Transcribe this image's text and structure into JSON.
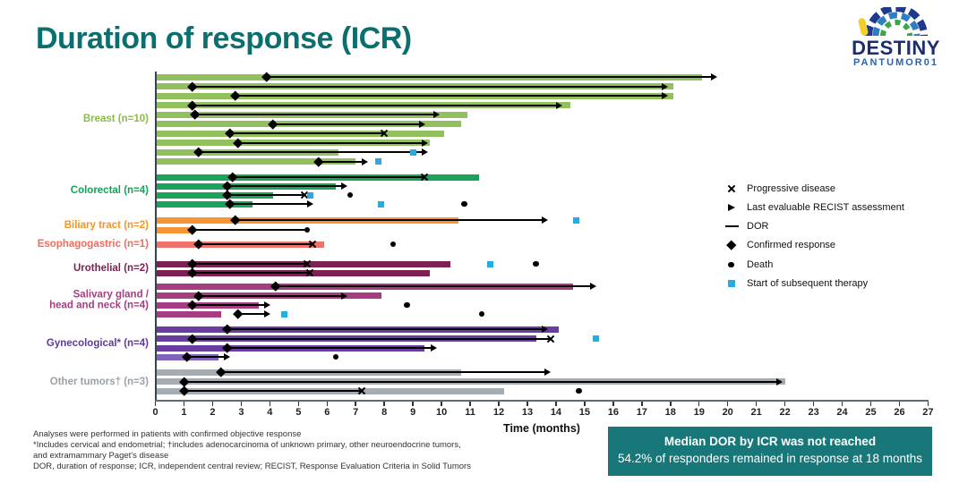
{
  "title": "Duration of response (ICR)",
  "logo": {
    "name": "DESTINY",
    "sub": "PANTUMOR01"
  },
  "colors": {
    "title": "#0c6f6f",
    "banner_bg": "#187779",
    "subsequent_therapy": "#29abe2",
    "logo_navy": "#1d2e6e",
    "logo_blue": "#2e62ab",
    "axis": "#37444c"
  },
  "banner": {
    "line1": "Median DOR by ICR was not reached",
    "line2": "54.2% of responders remained in response at 18 months"
  },
  "footnotes": [
    "Analyses were performed in patients with confirmed objective response",
    "*Includes cervical and endometrial; †includes adenocarcinoma of unknown primary, other neuroendocrine tumors,",
    "and extramammary Paget's disease",
    "DOR, duration of response; ICR, independent central review; RECIST, Response Evaluation Criteria in Solid Tumors"
  ],
  "legend": [
    {
      "symbol": "x",
      "label": "Progressive disease"
    },
    {
      "symbol": "arrow",
      "label": "Last evaluable RECIST assessment"
    },
    {
      "symbol": "line",
      "label": "DOR"
    },
    {
      "symbol": "diamond",
      "label": "Confirmed response"
    },
    {
      "symbol": "dot",
      "label": "Death"
    },
    {
      "symbol": "square",
      "label": "Start of subsequent therapy",
      "color": "#29abe2"
    }
  ],
  "chart_data": {
    "type": "bar",
    "subtype": "swimmer-plot",
    "xlabel": "Time (months)",
    "xlim": [
      0,
      27
    ],
    "xticks": [
      0,
      1,
      2,
      3,
      4,
      5,
      6,
      7,
      8,
      9,
      10,
      11,
      12,
      13,
      14,
      15,
      16,
      17,
      18,
      19,
      20,
      21,
      22,
      23,
      24,
      25,
      26,
      27
    ],
    "legend_position": "right",
    "grid": false,
    "sections": [
      {
        "label_lines": [
          "Breast (n=10)"
        ],
        "label_color": "#8abc4a",
        "color": "#93c05f",
        "rows": [
          {
            "bar": 19.1,
            "response": 3.9,
            "line_end": 19.5,
            "end_marker": "arrow",
            "death": null,
            "subsequent_therapy": null
          },
          {
            "bar": 18.1,
            "response": 1.3,
            "line_end": 17.8,
            "end_marker": "arrow",
            "death": null,
            "subsequent_therapy": null
          },
          {
            "bar": 18.1,
            "response": 2.8,
            "line_end": 17.8,
            "end_marker": "arrow",
            "death": null,
            "subsequent_therapy": null
          },
          {
            "bar": 14.5,
            "response": 1.3,
            "line_end": 14.1,
            "end_marker": "arrow",
            "death": null,
            "subsequent_therapy": null
          },
          {
            "bar": 10.9,
            "response": 1.4,
            "line_end": 9.8,
            "end_marker": "arrow",
            "death": null,
            "subsequent_therapy": null
          },
          {
            "bar": 10.7,
            "response": 4.1,
            "line_end": 9.3,
            "end_marker": "arrow",
            "death": null,
            "subsequent_therapy": null
          },
          {
            "bar": 10.1,
            "response": 2.6,
            "line_end": 8.0,
            "end_marker": "x",
            "death": null,
            "subsequent_therapy": null
          },
          {
            "bar": 9.6,
            "response": 2.9,
            "line_end": 9.4,
            "end_marker": "arrow",
            "death": null,
            "subsequent_therapy": null
          },
          {
            "bar": 6.4,
            "response": 1.5,
            "line_end": 9.4,
            "end_marker": "arrow",
            "death": null,
            "subsequent_therapy": 9.0
          },
          {
            "bar": 7.0,
            "response": 5.7,
            "line_end": 7.3,
            "end_marker": "arrow",
            "death": null,
            "subsequent_therapy": 7.8
          }
        ]
      },
      {
        "label_lines": [
          "Colorectal (n=4)"
        ],
        "label_color": "#17a258",
        "color": "#1ca35b",
        "rows": [
          {
            "bar": 11.3,
            "response": 2.7,
            "line_end": 9.4,
            "end_marker": "x",
            "death": null,
            "subsequent_therapy": null
          },
          {
            "bar": 6.3,
            "response": 2.5,
            "line_end": 6.6,
            "end_marker": "arrow",
            "death": null,
            "subsequent_therapy": null
          },
          {
            "bar": 4.1,
            "response": 2.5,
            "line_end": 5.2,
            "end_marker": "x",
            "death": 6.8,
            "subsequent_therapy": 5.4
          },
          {
            "bar": 3.4,
            "response": 2.6,
            "line_end": 5.4,
            "end_marker": "arrow",
            "death": 10.8,
            "subsequent_therapy": 7.9
          }
        ]
      },
      {
        "label_lines": [
          "Biliary tract (n=2)"
        ],
        "label_color": "#f7941d",
        "color": "#f79433",
        "rows": [
          {
            "bar": 10.6,
            "response": 2.8,
            "line_end": 13.6,
            "end_marker": "arrow",
            "death": null,
            "subsequent_therapy": 14.7
          },
          {
            "bar": 1.3,
            "response": 1.3,
            "line_end": 5.2,
            "end_marker": "none",
            "death": 5.3,
            "subsequent_therapy": null
          }
        ]
      },
      {
        "label_lines": [
          "Esophagogastric (n=1)"
        ],
        "label_color": "#f26b5c",
        "color": "#f0726a",
        "rows": [
          {
            "bar": 5.9,
            "response": 1.5,
            "line_end": 5.5,
            "end_marker": "x",
            "death": 8.3,
            "subsequent_therapy": null
          }
        ]
      },
      {
        "label_lines": [
          "Urothelial (n=2)"
        ],
        "label_color": "#7d2155",
        "color": "#7d2155",
        "rows": [
          {
            "bar": 10.3,
            "response": 1.3,
            "line_end": 5.3,
            "end_marker": "x",
            "death": 13.3,
            "subsequent_therapy": 11.7
          },
          {
            "bar": 9.6,
            "response": 1.3,
            "line_end": 5.4,
            "end_marker": "x",
            "death": null,
            "subsequent_therapy": null
          }
        ]
      },
      {
        "label_lines": [
          "Salivary gland /",
          "head and neck (n=4)"
        ],
        "label_color": "#a63d81",
        "color": "#a63d81",
        "rows": [
          {
            "bar": 14.6,
            "response": 4.2,
            "line_end": 15.3,
            "end_marker": "arrow",
            "death": null,
            "subsequent_therapy": null
          },
          {
            "bar": 7.9,
            "response": 1.5,
            "line_end": 6.6,
            "end_marker": "arrow",
            "death": null,
            "subsequent_therapy": null
          },
          {
            "bar": 3.6,
            "response": 1.3,
            "line_end": 3.9,
            "end_marker": "arrow",
            "death": 8.8,
            "subsequent_therapy": null
          },
          {
            "bar": 2.3,
            "response": 2.9,
            "line_end": 3.9,
            "end_marker": "arrow",
            "death": 11.4,
            "subsequent_therapy": 4.5
          }
        ]
      },
      {
        "label_lines": [
          "Gynecological* (n=4)"
        ],
        "label_color": "#5d3a9e",
        "color": "#6a3da0",
        "rows": [
          {
            "bar": 14.1,
            "response": 2.5,
            "line_end": 13.6,
            "end_marker": "arrow",
            "death": null,
            "subsequent_therapy": null
          },
          {
            "bar": 13.3,
            "response": 1.3,
            "line_end": 13.8,
            "end_marker": "x",
            "death": null,
            "subsequent_therapy": 15.4
          },
          {
            "bar": 9.4,
            "response": 2.5,
            "line_end": 9.7,
            "end_marker": "arrow",
            "death": null,
            "subsequent_therapy": null
          },
          {
            "bar": 2.2,
            "response": 1.1,
            "line_end": 2.5,
            "end_marker": "arrow",
            "death": 6.3,
            "subsequent_therapy": null,
            "color": "#8162bd"
          }
        ]
      },
      {
        "label_lines": [
          "Other tumors† (n=3)"
        ],
        "label_color": "#9aa2a8",
        "color": "#a5acb2",
        "rows": [
          {
            "bar": 10.7,
            "response": 2.3,
            "line_end": 13.7,
            "end_marker": "arrow",
            "death": null,
            "subsequent_therapy": null
          },
          {
            "bar": 22.0,
            "response": 1.0,
            "line_end": 21.8,
            "end_marker": "arrow",
            "death": null,
            "subsequent_therapy": null
          },
          {
            "bar": 12.2,
            "response": 1.0,
            "line_end": 7.2,
            "end_marker": "x",
            "death": 14.8,
            "subsequent_therapy": null
          }
        ]
      }
    ]
  }
}
